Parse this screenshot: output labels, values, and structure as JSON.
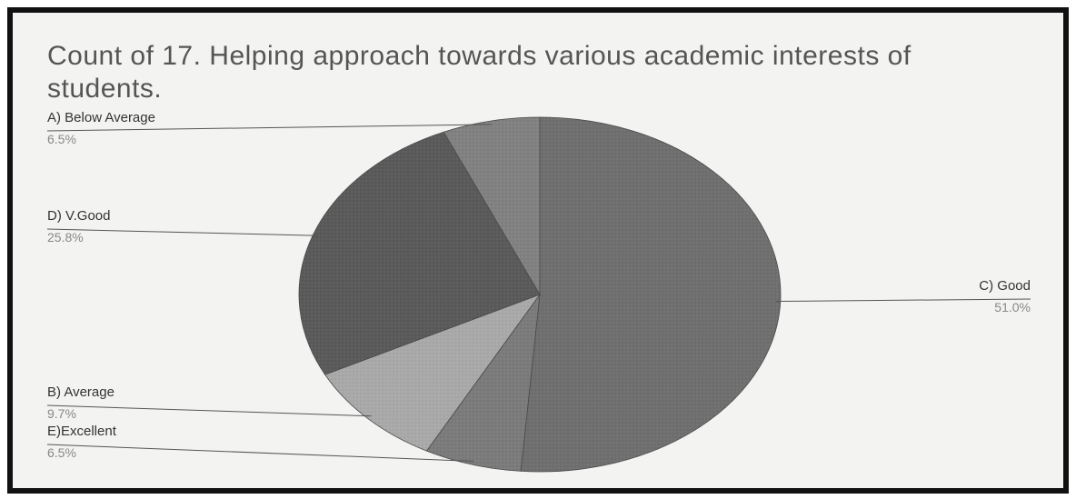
{
  "chart_data": {
    "type": "pie",
    "title": "Count of 17. Helping approach towards various academic interests of students.",
    "slices": [
      {
        "label": "C) Good",
        "percent_label": "51.0%",
        "value": 51.0,
        "color": "#6f6f6f"
      },
      {
        "label": "E)Excellent",
        "percent_label": "6.5%",
        "value": 6.5,
        "color": "#7b7b7b"
      },
      {
        "label": "B) Average",
        "percent_label": "9.7%",
        "value": 9.7,
        "color": "#a9a9a9"
      },
      {
        "label": "D) V.Good",
        "percent_label": "25.8%",
        "value": 25.8,
        "color": "#5a5a5a"
      },
      {
        "label": "A) Below Average",
        "percent_label": "6.5%",
        "value": 6.5,
        "color": "#818181"
      }
    ]
  }
}
